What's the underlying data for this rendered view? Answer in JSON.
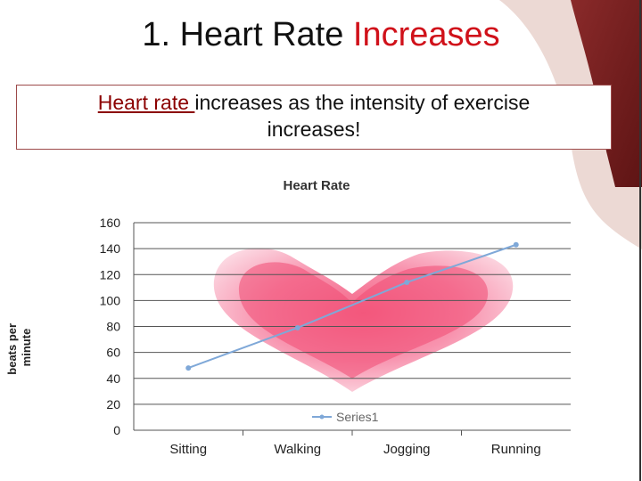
{
  "slide": {
    "title_main": "1. Heart Rate ",
    "title_accent": "Increases",
    "subtitle_underlined": "Heart rate ",
    "subtitle_rest": "increases as the intensity of exercise",
    "subtitle_line2": "increases!"
  },
  "colors": {
    "accent": "#d0111a",
    "series": "#7fa8d8",
    "corner": "#7a1f1f",
    "heart": "#f05a7a"
  },
  "icons": [
    "heart-image"
  ],
  "chart_data": {
    "type": "line",
    "title": "Heart Rate",
    "ylabel": "beats per minute",
    "xlabel": "",
    "categories": [
      "Sitting",
      "Walking",
      "Jogging",
      "Running"
    ],
    "series": [
      {
        "name": "Series1",
        "values": [
          48,
          79,
          114,
          143
        ]
      }
    ],
    "ylim": [
      0,
      160
    ],
    "yticks": [
      "0",
      "20",
      "40",
      "60",
      "80",
      "100",
      "120",
      "140",
      "160"
    ],
    "grid": true,
    "legend": "bottom"
  }
}
